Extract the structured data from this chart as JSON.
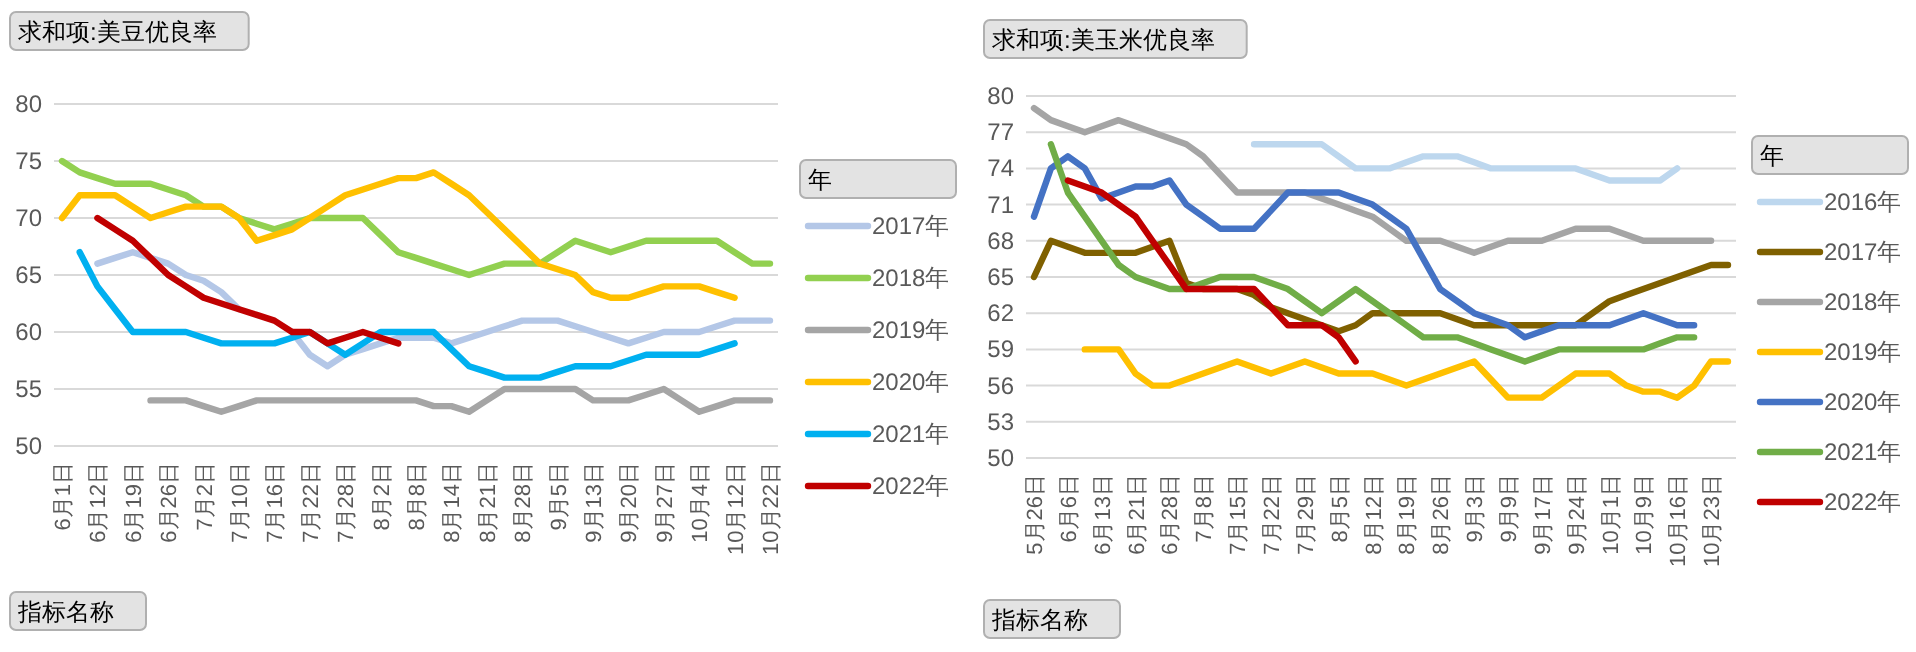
{
  "chart_data": [
    {
      "type": "line",
      "title": "求和项:美豆优良率",
      "legend_title": "年",
      "annotations": [
        "指标名称"
      ],
      "categories": [
        "6月1日",
        null,
        "6月12日",
        null,
        "6月19日",
        null,
        "6月26日",
        null,
        "7月2日",
        null,
        "7月10日",
        null,
        "7月16日",
        null,
        "7月22日",
        null,
        "7月28日",
        null,
        "8月2日",
        null,
        "8月8日",
        null,
        "8月14日",
        null,
        "8月21日",
        null,
        "8月28日",
        null,
        "9月5日",
        null,
        "9月13日",
        null,
        "9月20日",
        null,
        "9月27日",
        null,
        "10月4日",
        null,
        "10月12日",
        null,
        "10月22日"
      ],
      "series": [
        {
          "name": "2017年",
          "color": "#b4c7e7",
          "values": [
            null,
            null,
            66,
            66.5,
            67,
            66.5,
            66,
            65,
            64.5,
            63.5,
            62,
            null,
            null,
            60,
            58,
            57,
            58,
            58.5,
            59,
            59.5,
            59.5,
            59.5,
            59,
            59.5,
            60,
            60.5,
            61,
            61,
            61,
            60.5,
            60,
            59.5,
            59,
            59.5,
            60,
            60,
            60,
            60.5,
            61,
            61,
            61
          ]
        },
        {
          "name": "2018年",
          "color": "#92d050",
          "values": [
            75,
            74,
            73.5,
            73,
            73,
            73,
            72.5,
            72,
            71,
            71,
            70,
            69.5,
            69,
            69.5,
            70,
            70,
            70,
            70,
            68.5,
            67,
            66.5,
            66,
            65.5,
            65,
            65.5,
            66,
            66,
            66,
            67,
            68,
            67.5,
            67,
            67.5,
            68,
            68,
            68,
            68,
            68,
            67,
            66,
            66
          ]
        },
        {
          "name": "2019年",
          "color": "#a5a5a5",
          "values": [
            null,
            null,
            null,
            null,
            null,
            54,
            54,
            54,
            53.5,
            53,
            53.5,
            54,
            54,
            54,
            54,
            54,
            54,
            54,
            54,
            54,
            54,
            53.5,
            53.5,
            53,
            54,
            55,
            55,
            55,
            55,
            55,
            54,
            54,
            54,
            54.5,
            55,
            54,
            53,
            53.5,
            54,
            54,
            54
          ]
        },
        {
          "name": "2020年",
          "color": "#ffc000",
          "values": [
            70,
            72,
            72,
            72,
            71,
            70,
            70.5,
            71,
            71,
            71,
            70,
            68,
            68.5,
            69,
            70,
            71,
            72,
            72.5,
            73,
            73.5,
            73.5,
            74,
            73,
            72,
            70.5,
            69,
            67.5,
            66,
            65.5,
            65,
            63.5,
            63,
            63,
            63.5,
            64,
            64,
            64,
            63.5,
            63,
            null,
            null
          ]
        },
        {
          "name": "2021年",
          "color": "#00b0f0",
          "values": [
            null,
            67,
            64,
            62,
            60,
            60,
            60,
            60,
            59.5,
            59,
            59,
            59,
            59,
            59.5,
            60,
            59,
            58,
            59,
            60,
            60,
            60,
            60,
            58.5,
            57,
            56.5,
            56,
            56,
            56,
            56.5,
            57,
            57,
            57,
            57.5,
            58,
            58,
            58,
            58,
            58.5,
            59,
            null,
            null
          ]
        },
        {
          "name": "2022年",
          "color": "#c00000",
          "values": [
            null,
            null,
            70,
            69,
            68,
            66.5,
            65,
            64,
            63,
            62.5,
            62,
            61.5,
            61,
            60,
            60,
            59,
            59.5,
            60,
            59.5,
            59,
            null,
            null,
            null,
            null,
            null,
            null,
            null,
            null,
            null,
            null,
            null,
            null,
            null,
            null,
            null,
            null,
            null,
            null,
            null,
            null,
            null
          ]
        }
      ],
      "ylim": [
        50,
        80
      ],
      "yticks": [
        50,
        55,
        60,
        65,
        70,
        75,
        80
      ],
      "grid": "y",
      "legend": "right"
    },
    {
      "type": "line",
      "title": "求和项:美玉米优良率",
      "legend_title": "年",
      "annotations": [
        "指标名称"
      ],
      "categories": [
        "5月26日",
        null,
        "6月6日",
        null,
        "6月13日",
        null,
        "6月21日",
        null,
        "6月28日",
        null,
        "7月8日",
        null,
        "7月15日",
        null,
        "7月22日",
        null,
        "7月29日",
        null,
        "8月5日",
        null,
        "8月12日",
        null,
        "8月19日",
        null,
        "8月26日",
        null,
        "9月3日",
        null,
        "9月9日",
        null,
        "9月17日",
        null,
        "9月24日",
        null,
        "10月1日",
        null,
        "10月9日",
        null,
        "10月16日",
        null,
        "10月23日",
        null
      ],
      "series": [
        {
          "name": "2016年",
          "color": "#bdd7ee",
          "values": [
            null,
            null,
            null,
            null,
            null,
            null,
            null,
            null,
            null,
            null,
            null,
            null,
            null,
            76,
            76,
            76,
            76,
            76,
            75,
            74,
            74,
            74,
            74.5,
            75,
            75,
            75,
            74.5,
            74,
            74,
            74,
            74,
            74,
            74,
            73.5,
            73,
            73,
            73,
            73,
            74,
            null,
            null,
            null
          ]
        },
        {
          "name": "2017年",
          "color": "#7f6000",
          "values": [
            65,
            68,
            67.5,
            67,
            67,
            67,
            67,
            67.5,
            68,
            64.5,
            64,
            64,
            64,
            63.5,
            62.5,
            62,
            61.5,
            61,
            60.5,
            61,
            62,
            62,
            62,
            62,
            62,
            61.5,
            61,
            61,
            61,
            61,
            61,
            61,
            61,
            62,
            63,
            63.5,
            64,
            64.5,
            65,
            65.5,
            66,
            66
          ]
        },
        {
          "name": "2018年",
          "color": "#a5a5a5",
          "values": [
            79,
            78,
            77.5,
            77,
            77.5,
            78,
            77.5,
            77,
            76.5,
            76,
            75,
            73.5,
            72,
            72,
            72,
            72,
            72,
            71.5,
            71,
            70.5,
            70,
            69,
            68,
            68,
            68,
            67.5,
            67,
            67.5,
            68,
            68,
            68,
            68.5,
            69,
            69,
            69,
            68.5,
            68,
            68,
            68,
            68,
            68,
            null
          ]
        },
        {
          "name": "2019年",
          "color": "#ffc000",
          "values": [
            null,
            null,
            null,
            59,
            59,
            59,
            57,
            56,
            56,
            56.5,
            57,
            57.5,
            58,
            57.5,
            57,
            57.5,
            58,
            57.5,
            57,
            57,
            57,
            56.5,
            56,
            56.5,
            57,
            57.5,
            58,
            56.5,
            55,
            55,
            55,
            56,
            57,
            57,
            57,
            56,
            55.5,
            55.5,
            55,
            56,
            58,
            58
          ]
        },
        {
          "name": "2020年",
          "color": "#4472c4",
          "values": [
            70,
            74,
            75,
            74,
            71.5,
            72,
            72.5,
            72.5,
            73,
            71,
            70,
            69,
            69,
            69,
            70.5,
            72,
            72,
            72,
            72,
            71.5,
            71,
            70,
            69,
            66.5,
            64,
            63,
            62,
            61.5,
            61,
            60,
            60.5,
            61,
            61,
            61,
            61,
            61.5,
            62,
            61.5,
            61,
            61,
            null,
            null
          ]
        },
        {
          "name": "2021年",
          "color": "#70ad47",
          "values": [
            null,
            76,
            72,
            70,
            68,
            66,
            65,
            64.5,
            64,
            64,
            64.5,
            65,
            65,
            65,
            64.5,
            64,
            63,
            62,
            63,
            64,
            63,
            62,
            61,
            60,
            60,
            60,
            59.5,
            59,
            58.5,
            58,
            58.5,
            59,
            59,
            59,
            59,
            59,
            59,
            59.5,
            60,
            60,
            null,
            null
          ]
        },
        {
          "name": "2022年",
          "color": "#c00000",
          "values": [
            null,
            null,
            73,
            72.5,
            72,
            71,
            70,
            68,
            66,
            64,
            64,
            64,
            64,
            64,
            62.5,
            61,
            61,
            61,
            60,
            58,
            null,
            null,
            null,
            null,
            null,
            null,
            null,
            null,
            null,
            null,
            null,
            null,
            null,
            null,
            null,
            null,
            null,
            null,
            null,
            null,
            null,
            null
          ]
        }
      ],
      "ylim": [
        50,
        80
      ],
      "yticks": [
        50,
        53,
        56,
        59,
        62,
        65,
        68,
        71,
        74,
        77,
        80
      ],
      "grid": "y",
      "legend": "right"
    }
  ]
}
